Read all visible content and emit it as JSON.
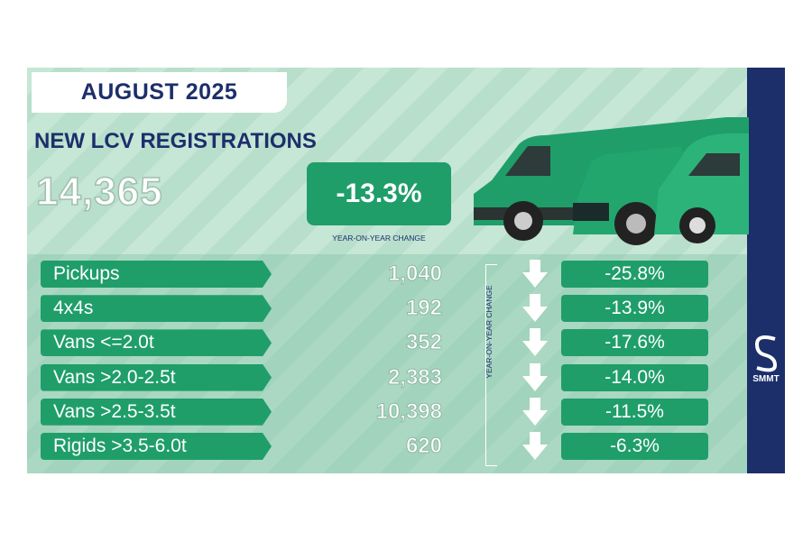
{
  "header": {
    "title": "AUGUST 2025",
    "subtitle": "NEW LCV REGISTRATIONS",
    "total": "14,365",
    "change": "-13.3%",
    "change_label": "YEAR-ON-YEAR CHANGE"
  },
  "table": {
    "change_label": "YEAR-ON-YEAR CHANGE",
    "rows": [
      [
        "Pickups",
        "1,040",
        "-25.8%"
      ],
      [
        "4x4s",
        "192",
        "-13.9%"
      ],
      [
        "Vans <=2.0t",
        "352",
        "-17.6%"
      ],
      [
        "Vans >2.0-2.5t",
        "2,383",
        "-14.0%"
      ],
      [
        "Vans >2.5-3.5t",
        "10,398",
        "-11.5%"
      ],
      [
        "Rigids >3.5-6.0t",
        "620",
        "-6.3%"
      ]
    ]
  },
  "logo": {
    "text": "SMMT"
  }
}
